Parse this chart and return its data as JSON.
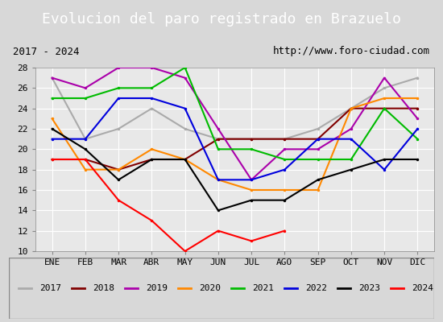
{
  "title": "Evolucion del paro registrado en Brazuelo",
  "subtitle_left": "2017 - 2024",
  "subtitle_right": "http://www.foro-ciudad.com",
  "xlabel": "",
  "ylabel": "",
  "ylim": [
    10,
    28
  ],
  "yticks": [
    10,
    12,
    14,
    16,
    18,
    20,
    22,
    24,
    26,
    28
  ],
  "months": [
    "ENE",
    "FEB",
    "MAR",
    "ABR",
    "MAY",
    "JUN",
    "JUL",
    "AGO",
    "SEP",
    "OCT",
    "NOV",
    "DIC"
  ],
  "series": {
    "2017": {
      "color": "#aaaaaa",
      "values": [
        27,
        21,
        22,
        24,
        22,
        21,
        21,
        21,
        22,
        24,
        26,
        27
      ]
    },
    "2018": {
      "color": "#800000",
      "values": [
        19,
        19,
        18,
        19,
        19,
        21,
        21,
        21,
        21,
        24,
        24,
        24
      ]
    },
    "2019": {
      "color": "#aa00aa",
      "values": [
        27,
        26,
        28,
        28,
        27,
        22,
        17,
        20,
        20,
        22,
        27,
        23
      ]
    },
    "2020": {
      "color": "#ff8800",
      "values": [
        23,
        18,
        18,
        20,
        19,
        17,
        16,
        16,
        16,
        24,
        25,
        25
      ]
    },
    "2021": {
      "color": "#00bb00",
      "values": [
        25,
        25,
        26,
        26,
        28,
        20,
        20,
        19,
        19,
        19,
        24,
        21
      ]
    },
    "2022": {
      "color": "#0000dd",
      "values": [
        21,
        21,
        25,
        25,
        24,
        17,
        17,
        18,
        21,
        21,
        18,
        22
      ]
    },
    "2023": {
      "color": "#000000",
      "values": [
        22,
        20,
        17,
        19,
        19,
        14,
        15,
        15,
        17,
        18,
        19,
        19
      ]
    },
    "2024": {
      "color": "#ff0000",
      "values": [
        19,
        19,
        15,
        13,
        10,
        12,
        11,
        12,
        null,
        null,
        null,
        null
      ]
    }
  },
  "background_color": "#d8d8d8",
  "plot_background": "#e8e8e8",
  "title_bg_color": "#4472c4",
  "title_color": "white",
  "legend_bg": "#f0f0f0",
  "grid_color": "#ffffff"
}
